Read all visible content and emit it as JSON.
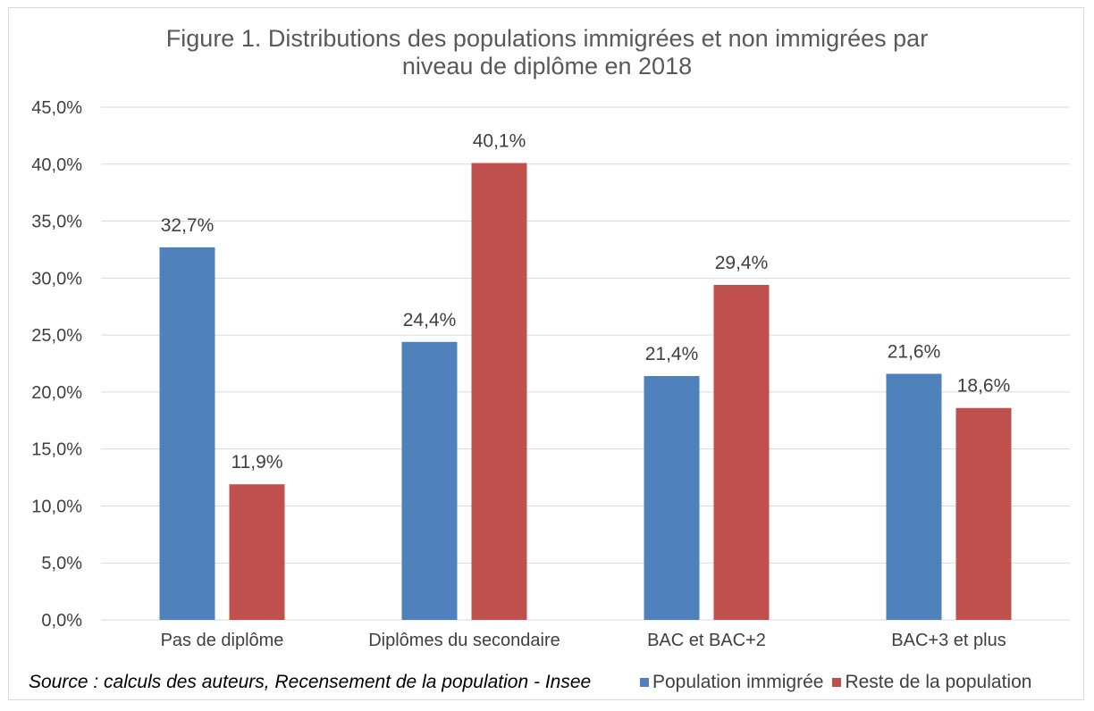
{
  "title_line1": "Figure 1. Distributions des populations immigrées et non immigrées par",
  "title_line2": "niveau de diplôme en 2018",
  "source": "Source : calculs des auteurs, Recensement de la population - Insee",
  "chart_data": {
    "type": "bar",
    "categories": [
      "Pas de diplôme",
      "Diplômes du secondaire",
      "BAC et BAC+2",
      "BAC+3 et plus"
    ],
    "series": [
      {
        "name": "Population immigrée",
        "values": [
          32.7,
          24.4,
          21.4,
          21.6
        ],
        "labels": [
          "32,7%",
          "24,4%",
          "21,4%",
          "21,6%"
        ],
        "color": "#4f81bd"
      },
      {
        "name": "Reste de la population",
        "values": [
          11.9,
          40.1,
          29.4,
          18.6
        ],
        "labels": [
          "11,9%",
          "40,1%",
          "29,4%",
          "18,6%"
        ],
        "color": "#c0504d"
      }
    ],
    "ylim": [
      0,
      45
    ],
    "yticks": [
      0,
      5,
      10,
      15,
      20,
      25,
      30,
      35,
      40,
      45
    ],
    "ytick_labels": [
      "0,0%",
      "5,0%",
      "10,0%",
      "15,0%",
      "20,0%",
      "25,0%",
      "30,0%",
      "35,0%",
      "40,0%",
      "45,0%"
    ],
    "grid": true,
    "legend_position": "bottom-right",
    "xlabel": "",
    "ylabel": ""
  }
}
